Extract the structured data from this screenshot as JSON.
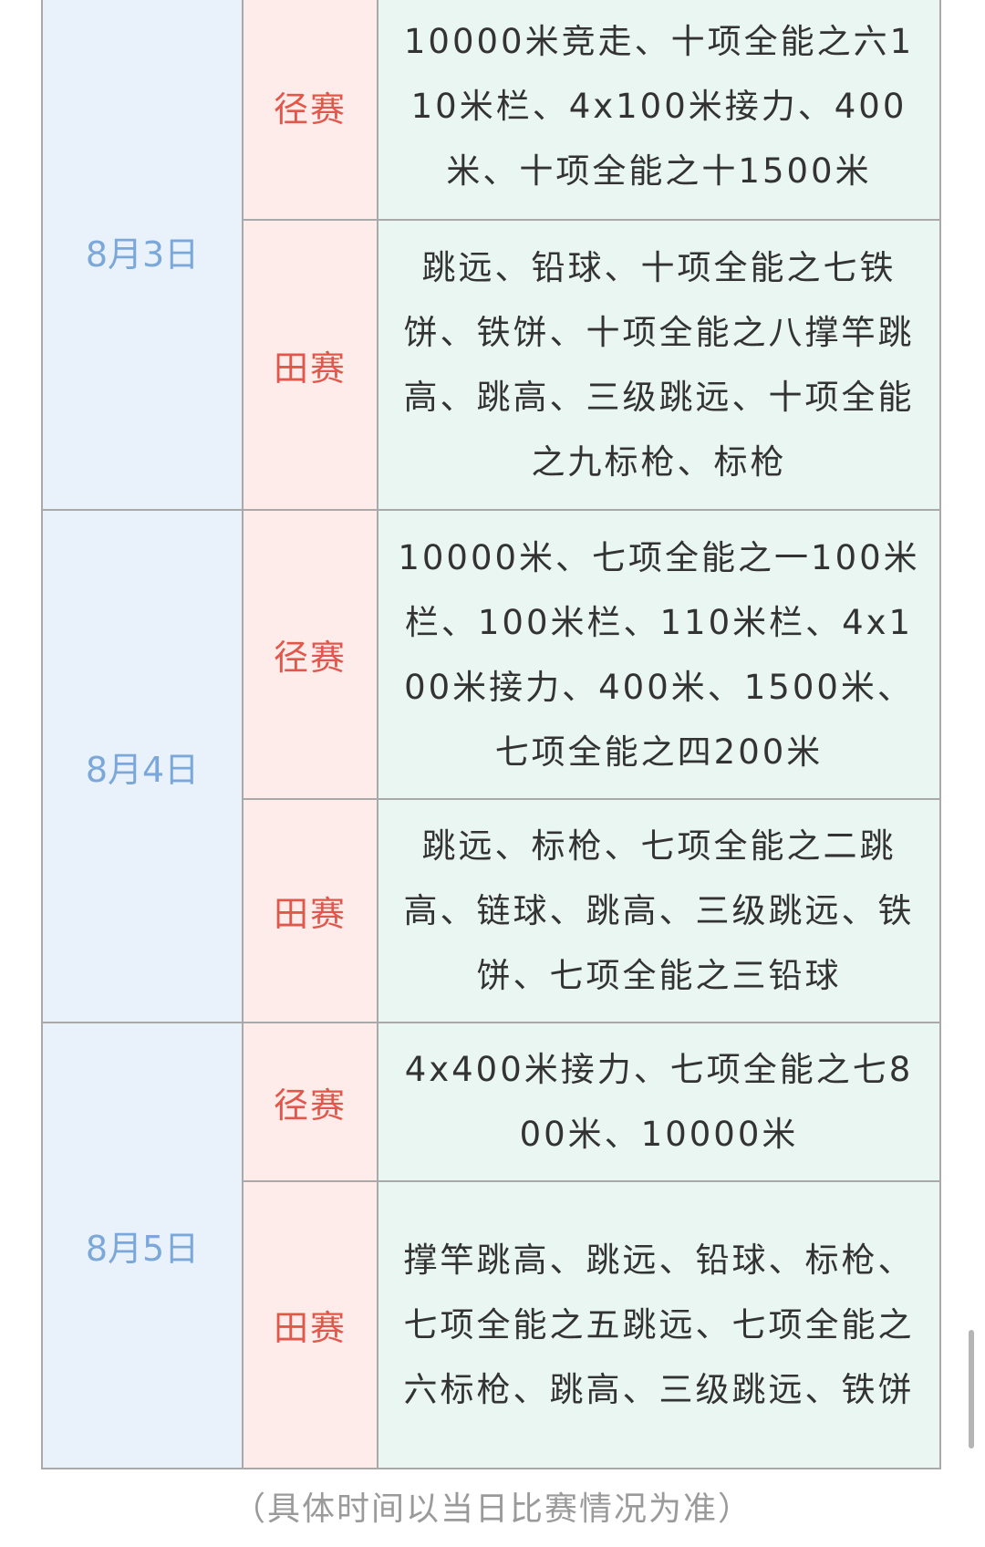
{
  "table": {
    "rows": [
      {
        "date": "8月3日",
        "events": [
          {
            "type": "径赛",
            "items": "10000米竞走、十项全能之六110米栏、4x100米接力、400米、十项全能之十1500米"
          },
          {
            "type": "田赛",
            "items": "跳远、铅球、十项全能之七铁饼、铁饼、十项全能之八撑竿跳高、跳高、三级跳远、十项全能之九标枪、标枪"
          }
        ]
      },
      {
        "date": "8月4日",
        "events": [
          {
            "type": "径赛",
            "items": "10000米、七项全能之一100米栏、100米栏、110米栏、4x100米接力、400米、1500米、七项全能之四200米"
          },
          {
            "type": "田赛",
            "items": "跳远、标枪、七项全能之二跳高、链球、跳高、三级跳远、铁饼、七项全能之三铅球"
          }
        ]
      },
      {
        "date": "8月5日",
        "events": [
          {
            "type": "径赛",
            "items": "4x400米接力、七项全能之七800米、10000米"
          },
          {
            "type": "田赛",
            "items": "撑竿跳高、跳远、铅球、标枪、七项全能之五跳远、七项全能之六标枪、跳高、三级跳远、铁饼"
          }
        ]
      }
    ]
  },
  "footer": {
    "note": "（具体时间以当日比赛情况为准）"
  }
}
